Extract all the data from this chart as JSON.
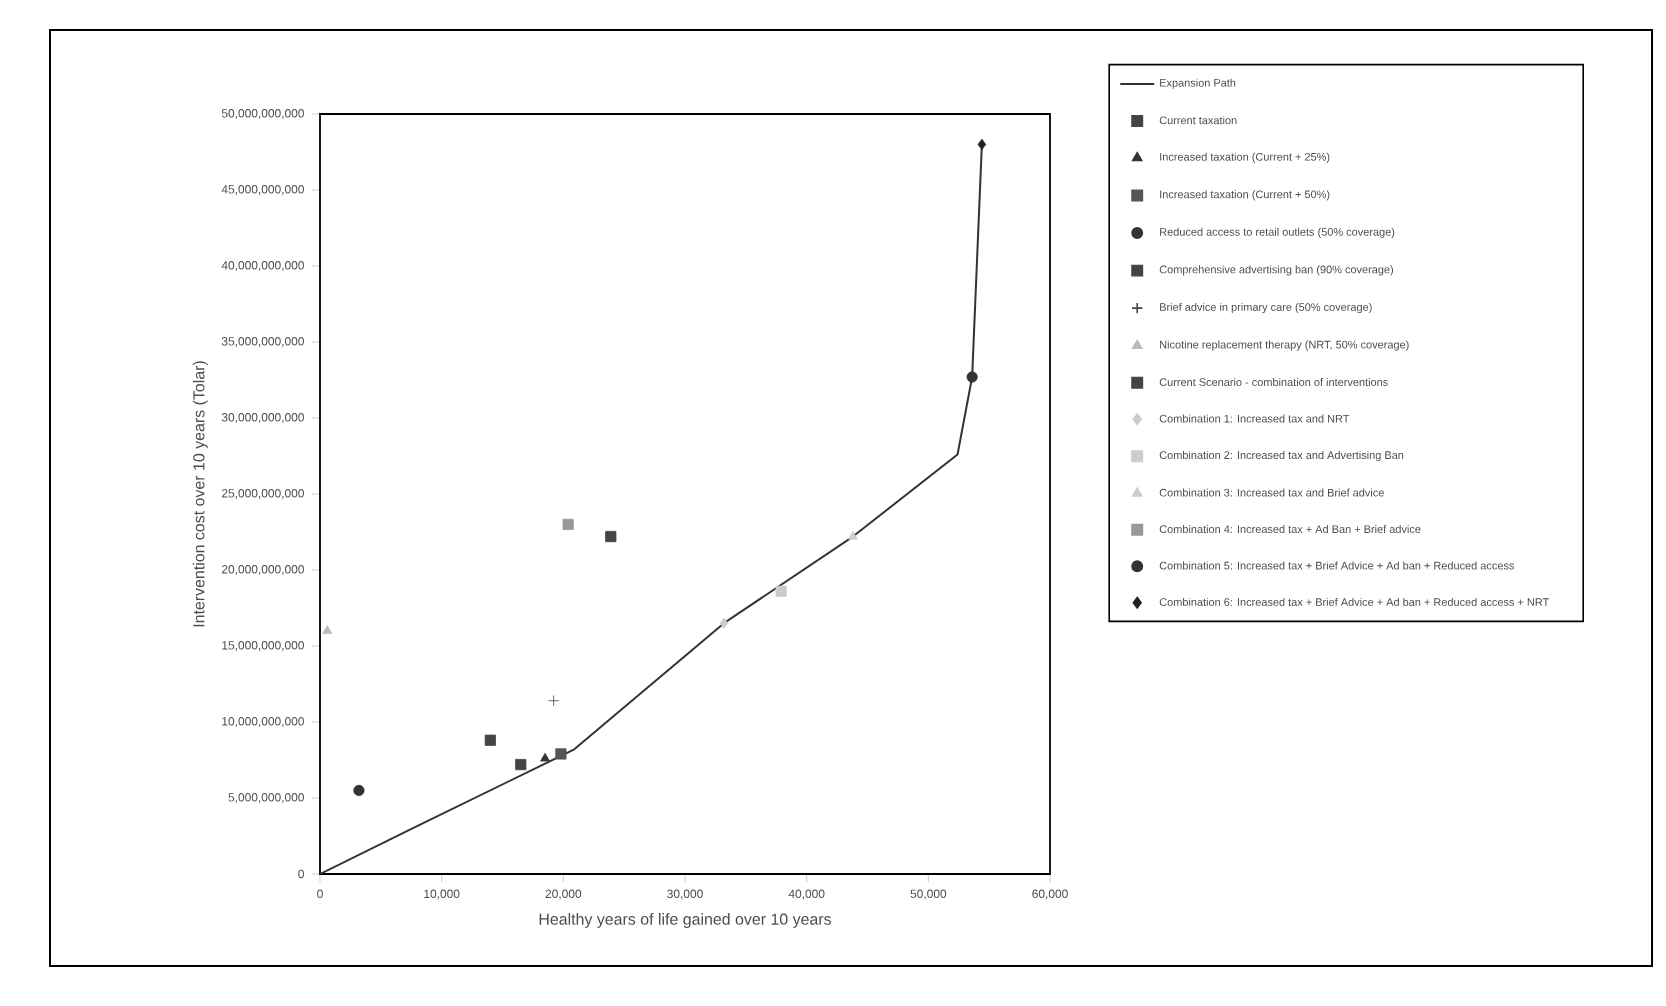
{
  "chart_data": {
    "type": "scatter",
    "xlabel": "Healthy years of life gained over 10 years",
    "ylabel": "Intervention cost over 10 years (Tolar)",
    "xlim": [
      0,
      60000
    ],
    "ylim": [
      0,
      50000000000
    ],
    "xticks": [
      {
        "value": 0,
        "label": "0"
      },
      {
        "value": 10000,
        "label": "10,000"
      },
      {
        "value": 20000,
        "label": "20,000"
      },
      {
        "value": 30000,
        "label": "30,000"
      },
      {
        "value": 40000,
        "label": "40,000"
      },
      {
        "value": 50000,
        "label": "50,000"
      },
      {
        "value": 60000,
        "label": "60,000"
      }
    ],
    "yticks": [
      {
        "value": 0,
        "label": "0"
      },
      {
        "value": 5000000000,
        "label": "5,000,000,000"
      },
      {
        "value": 10000000000,
        "label": "10,000,000,000"
      },
      {
        "value": 15000000000,
        "label": "15,000,000,000"
      },
      {
        "value": 20000000000,
        "label": "20,000,000,000"
      },
      {
        "value": 25000000000,
        "label": "25,000,000,000"
      },
      {
        "value": 30000000000,
        "label": "30,000,000,000"
      },
      {
        "value": 35000000000,
        "label": "35,000,000,000"
      },
      {
        "value": 40000000000,
        "label": "40,000,000,000"
      },
      {
        "value": 45000000000,
        "label": "45,000,000,000"
      },
      {
        "value": 50000000000,
        "label": "50,000,000,000"
      }
    ],
    "legend": "right",
    "grid": false,
    "series": [
      {
        "name": "Expansion Path",
        "type": "line",
        "marker": "none",
        "color": "#333333",
        "x": [
          0,
          7600,
          20900,
          33200,
          43800,
          52400,
          53600,
          54400
        ],
        "values": [
          0,
          3000000000,
          8200000000,
          16500000000,
          22200000000,
          27600000000,
          32700000000,
          48000000000
        ]
      },
      {
        "name": "Current taxation",
        "marker": "square",
        "color": "#444444",
        "x": [
          16500
        ],
        "values": [
          7200000000
        ]
      },
      {
        "name": "Increased taxation (Current + 25%)",
        "marker": "triangle",
        "color": "#333333",
        "x": [
          18500
        ],
        "values": [
          7600000000
        ]
      },
      {
        "name": "Increased taxation (Current + 50%)",
        "marker": "square",
        "color": "#555555",
        "x": [
          19800
        ],
        "values": [
          7900000000
        ]
      },
      {
        "name": "Reduced access to retail outlets (50% coverage)",
        "marker": "circle",
        "color": "#333333",
        "x": [
          3200
        ],
        "values": [
          5500000000
        ]
      },
      {
        "name": "Comprehensive advertising ban (90% coverage)",
        "marker": "square",
        "color": "#444444",
        "x": [
          14000
        ],
        "values": [
          8800000000
        ]
      },
      {
        "name": "Brief advice in primary care (50% coverage)",
        "marker": "cross",
        "color": "#444444",
        "x": [
          19200
        ],
        "values": [
          11400000000
        ]
      },
      {
        "name": "Nicotine replacement therapy (NRT, 50% coverage)",
        "marker": "triangle",
        "color": "#bbbbbb",
        "x": [
          600
        ],
        "values": [
          16000000000
        ]
      },
      {
        "name": "Current Scenario - combination of interventions",
        "marker": "square",
        "color": "#444444",
        "x": [
          23900
        ],
        "values": [
          22200000000
        ]
      },
      {
        "name": "Combination 1: Increased tax and NRT",
        "marker": "diamond",
        "color": "#cccccc",
        "x": [
          33200
        ],
        "values": [
          16500000000
        ]
      },
      {
        "name": "Combination 2: Increased tax and Advertising Ban",
        "marker": "square",
        "color": "#cccccc",
        "x": [
          37900
        ],
        "values": [
          18600000000
        ]
      },
      {
        "name": "Combination 3: Increased tax and Brief advice",
        "marker": "triangle",
        "color": "#cccccc",
        "x": [
          43800
        ],
        "values": [
          22200000000
        ]
      },
      {
        "name": "Combination 4: Increased tax + Ad Ban + Brief advice",
        "marker": "square",
        "color": "#999999",
        "x": [
          20400
        ],
        "values": [
          23000000000
        ]
      },
      {
        "name": "Combination 5: Increased tax + Brief Advice + Ad ban + Reduced access",
        "marker": "circle",
        "color": "#333333",
        "x": [
          53600
        ],
        "values": [
          32700000000
        ]
      },
      {
        "name": "Combination 6: Increased tax + Brief Advice + Ad ban + Reduced access + NRT",
        "marker": "diamond",
        "color": "#222222",
        "x": [
          54400
        ],
        "values": [
          48000000000
        ]
      }
    ]
  }
}
